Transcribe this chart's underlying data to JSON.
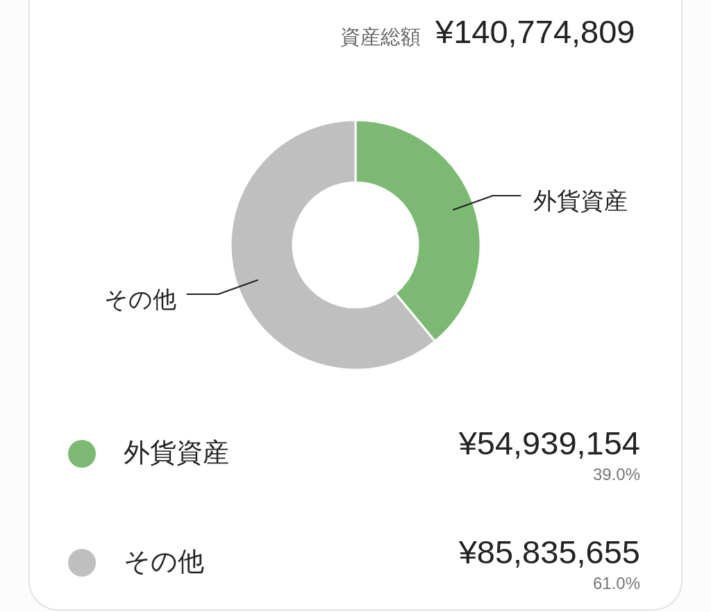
{
  "chart_data": {
    "type": "donut",
    "title": "資産総額",
    "subtitle": "¥140,774,809",
    "categories": [
      "外貨資産",
      "その他"
    ],
    "values": [
      54939154,
      85835655
    ],
    "colors": [
      "#7cb973",
      "#bfbfbf"
    ],
    "value_labels": [
      "¥54,939,154",
      "¥85,835,655"
    ],
    "annotations": [
      "39.0%",
      "61.0%"
    ],
    "legend": "bottom"
  }
}
